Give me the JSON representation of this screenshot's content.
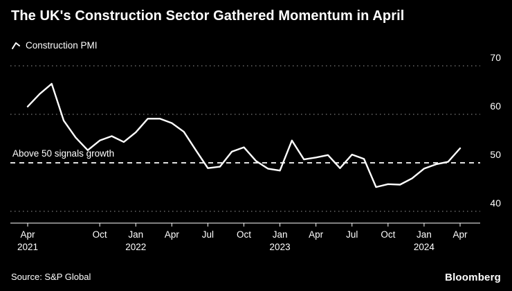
{
  "header": {
    "title": "The UK's Construction Sector Gathered Momentum in April"
  },
  "legend": {
    "label": "Construction PMI"
  },
  "footer": {
    "source": "Source: S&P Global",
    "brand": "Bloomberg"
  },
  "colors": {
    "background": "#000000",
    "line": "#ffffff",
    "grid": "#8a8a8a",
    "threshold": "#ffffff",
    "text": "#ffffff"
  },
  "chart_data": {
    "type": "line",
    "title": "The UK's Construction Sector Gathered Momentum in April",
    "xlabel": "",
    "ylabel": "",
    "ylim": [
      40,
      70
    ],
    "yticks": [
      40,
      50,
      60,
      70
    ],
    "y_axis_side": "right",
    "grid": "dotted-horizontal",
    "legend_position": "top-left",
    "threshold": {
      "value": 50,
      "label": "Above 50 signals growth",
      "style": "dashed"
    },
    "x": [
      "Apr 2021",
      "May 2021",
      "Jun 2021",
      "Jul 2021",
      "Aug 2021",
      "Sep 2021",
      "Oct 2021",
      "Nov 2021",
      "Dec 2021",
      "Jan 2022",
      "Feb 2022",
      "Mar 2022",
      "Apr 2022",
      "May 2022",
      "Jun 2022",
      "Jul 2022",
      "Aug 2022",
      "Sep 2022",
      "Oct 2022",
      "Nov 2022",
      "Dec 2022",
      "Jan 2023",
      "Feb 2023",
      "Mar 2023",
      "Apr 2023",
      "May 2023",
      "Jun 2023",
      "Jul 2023",
      "Aug 2023",
      "Sep 2023",
      "Oct 2023",
      "Nov 2023",
      "Dec 2023",
      "Jan 2024",
      "Feb 2024",
      "Mar 2024",
      "Apr 2024"
    ],
    "series": [
      {
        "name": "Construction PMI",
        "values": [
          61.6,
          64.2,
          66.3,
          58.7,
          55.2,
          52.6,
          54.6,
          55.5,
          54.3,
          56.3,
          59.1,
          59.1,
          58.2,
          56.4,
          52.6,
          48.9,
          49.2,
          52.3,
          53.2,
          50.4,
          48.8,
          48.4,
          54.6,
          50.7,
          51.1,
          51.6,
          48.9,
          51.7,
          50.8,
          45.0,
          45.6,
          45.5,
          46.8,
          48.8,
          49.7,
          50.2,
          53.0
        ]
      }
    ],
    "xticks": [
      {
        "i": 0,
        "month": "Apr",
        "year": "2021"
      },
      {
        "i": 6,
        "month": "Oct"
      },
      {
        "i": 9,
        "month": "Jan",
        "year": "2022"
      },
      {
        "i": 12,
        "month": "Apr"
      },
      {
        "i": 15,
        "month": "Jul"
      },
      {
        "i": 18,
        "month": "Oct"
      },
      {
        "i": 21,
        "month": "Jan",
        "year": "2023"
      },
      {
        "i": 24,
        "month": "Apr"
      },
      {
        "i": 27,
        "month": "Jul"
      },
      {
        "i": 30,
        "month": "Oct"
      },
      {
        "i": 33,
        "month": "Jan",
        "year": "2024"
      },
      {
        "i": 36,
        "month": "Apr"
      }
    ]
  }
}
